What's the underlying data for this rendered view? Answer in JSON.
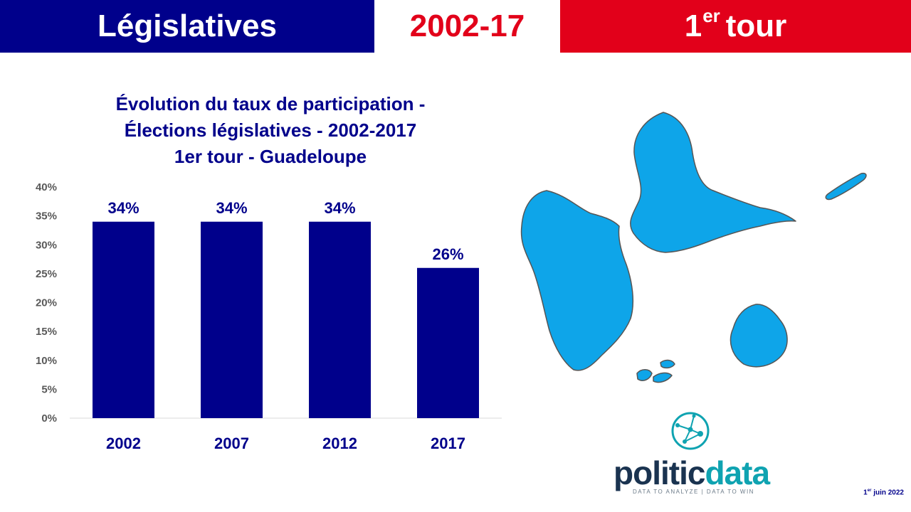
{
  "header": {
    "left_title": "Législatives",
    "center_title": "2002-17",
    "right_title_main": "1",
    "right_title_sup": "er",
    "right_title_rest": "tour"
  },
  "colors": {
    "navy": "#00008b",
    "red": "#e2001a",
    "bar": "#00008b",
    "map_fill": "#0ea5e9",
    "map_stroke": "#555555",
    "axis_text": "#595959",
    "baseline": "#d9d9d9"
  },
  "chart_data": {
    "type": "bar",
    "title_lines": [
      "Évolution du taux de participation -",
      "Élections législatives - 2002-2017",
      "1er tour - Guadeloupe"
    ],
    "categories": [
      "2002",
      "2007",
      "2012",
      "2017"
    ],
    "values": [
      34,
      34,
      34,
      26
    ],
    "value_labels": [
      "34%",
      "34%",
      "34%",
      "26%"
    ],
    "yticks": [
      "0%",
      "5%",
      "10%",
      "15%",
      "20%",
      "25%",
      "30%",
      "35%",
      "40%"
    ],
    "ylim": [
      0,
      40
    ],
    "grid": false,
    "legend": "none"
  },
  "branding": {
    "logo_part1": "politic",
    "logo_part2": "data",
    "tagline": "DATA TO ANALYZE | DATA TO WIN",
    "date_day": "1",
    "date_sup": "er",
    "date_rest": "juin 2022"
  },
  "icons": {
    "map": "guadeloupe-map",
    "logo": "network-globe-icon"
  }
}
